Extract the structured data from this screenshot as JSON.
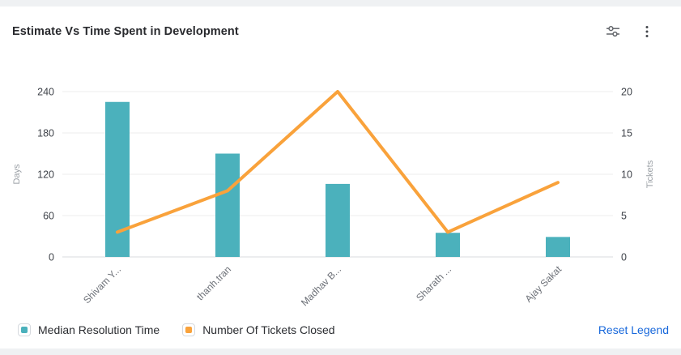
{
  "widget": {
    "title": "Estimate Vs Time Spent in Development",
    "toolbar": {
      "filter_icon": "horizontal-sliders-icon",
      "menu_icon": "kebab-menu-icon",
      "icon_color": "#63666b"
    }
  },
  "legend": {
    "items": [
      {
        "label": "Median Resolution Time",
        "color": "#4bb1bc"
      },
      {
        "label": "Number Of Tickets Closed",
        "color": "#f9a23b"
      }
    ],
    "reset_label": "Reset Legend",
    "reset_color": "#1868db"
  },
  "chart_data": {
    "type": "combo-bar-line",
    "title": "Estimate Vs Time Spent in Development",
    "categories": [
      "Shivam Y...",
      "thanh.tran",
      "Madhav B...",
      "Sharath ...",
      "Ajay Sakat"
    ],
    "series": [
      {
        "name": "Median Resolution Time",
        "type": "bar",
        "axis": "left",
        "color": "#4bb1bc",
        "values": [
          225,
          150,
          106,
          35,
          29
        ]
      },
      {
        "name": "Number Of Tickets Closed",
        "type": "line",
        "axis": "right",
        "color": "#f9a23b",
        "values": [
          3,
          8,
          20,
          3,
          9
        ]
      }
    ],
    "left_axis": {
      "label": "Days",
      "min": 0,
      "max": 240,
      "tick_step": 60,
      "ticks": [
        0,
        60,
        120,
        180,
        240
      ]
    },
    "right_axis": {
      "label": "Tickets",
      "min": 0,
      "max": 20,
      "tick_step": 5,
      "ticks": [
        0,
        5,
        10,
        15,
        20
      ]
    },
    "grid": true,
    "legend_position": "bottom",
    "colors": {
      "gridline": "#ececec",
      "axis_line": "#d8dbdf",
      "tick_text": "#3f434a",
      "axis_title_text": "#9ba0a6",
      "category_text": "#6c7077"
    }
  }
}
